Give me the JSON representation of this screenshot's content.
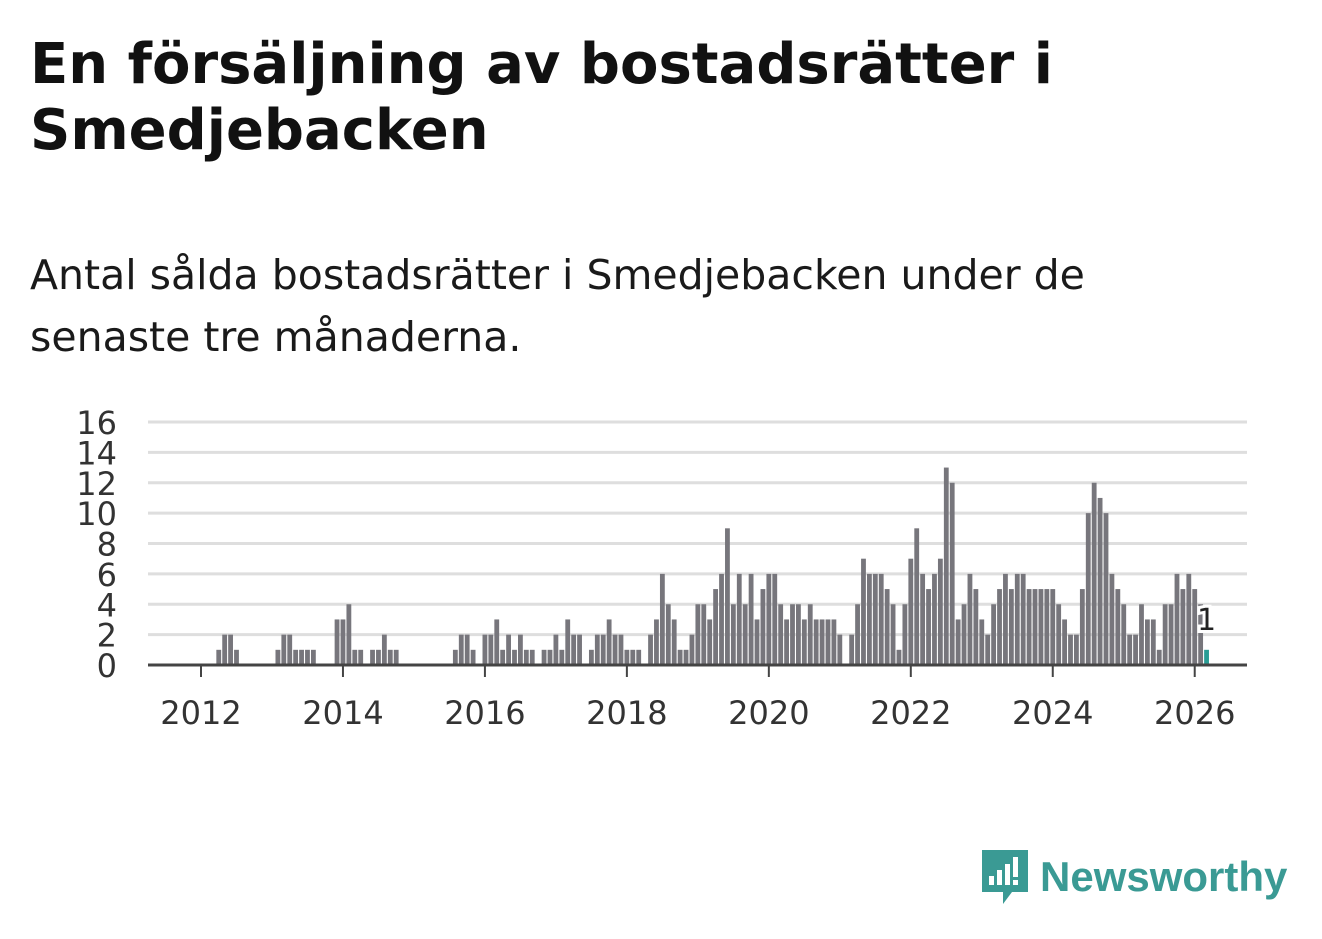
{
  "title": "En försäljning av bostadsrätter i Smedjebacken",
  "subtitle": "Antal sålda bostadsrätter i Smedjebacken under de senaste tre månaderna.",
  "brand": {
    "name": "Newsworthy",
    "color": "#3a9a94"
  },
  "chart_data": {
    "type": "bar",
    "title": "En försäljning av bostadsrätter i Smedjebacken",
    "xlabel": "",
    "ylabel": "",
    "ylim": [
      0,
      16
    ],
    "yticks": [
      0,
      2,
      4,
      6,
      8,
      10,
      12,
      14,
      16
    ],
    "xticks": [
      "2012",
      "2014",
      "2016",
      "2018",
      "2020",
      "2022",
      "2024",
      "2026"
    ],
    "start": "2011-03",
    "bar_color": "#77767c",
    "highlight_color": "#2a9d95",
    "highlight_label": "1",
    "grid": true,
    "values": [
      0,
      0,
      0,
      0,
      0,
      0,
      0,
      0,
      0,
      0,
      0,
      0,
      0,
      1,
      2,
      2,
      1,
      0,
      0,
      0,
      0,
      0,
      0,
      1,
      2,
      2,
      1,
      1,
      1,
      1,
      0,
      0,
      0,
      3,
      3,
      4,
      1,
      1,
      0,
      1,
      1,
      2,
      1,
      1,
      0,
      0,
      0,
      0,
      0,
      0,
      0,
      0,
      0,
      1,
      2,
      2,
      1,
      0,
      2,
      2,
      3,
      1,
      2,
      1,
      2,
      1,
      1,
      0,
      1,
      1,
      2,
      1,
      3,
      2,
      2,
      0,
      1,
      2,
      2,
      3,
      2,
      2,
      1,
      1,
      1,
      0,
      2,
      3,
      6,
      4,
      3,
      1,
      1,
      2,
      4,
      4,
      3,
      5,
      6,
      9,
      4,
      6,
      4,
      6,
      3,
      5,
      6,
      6,
      4,
      3,
      4,
      4,
      3,
      4,
      3,
      3,
      3,
      3,
      2,
      0,
      2,
      4,
      7,
      6,
      6,
      6,
      5,
      4,
      1,
      4,
      7,
      9,
      6,
      5,
      6,
      7,
      13,
      12,
      3,
      4,
      6,
      5,
      3,
      2,
      4,
      5,
      6,
      5,
      6,
      6,
      5,
      5,
      5,
      5,
      5,
      4,
      3,
      2,
      2,
      5,
      10,
      12,
      11,
      10,
      6,
      5,
      4,
      2,
      2,
      4,
      3,
      3,
      1,
      4,
      4,
      6,
      5,
      6,
      5,
      4,
      1
    ]
  }
}
